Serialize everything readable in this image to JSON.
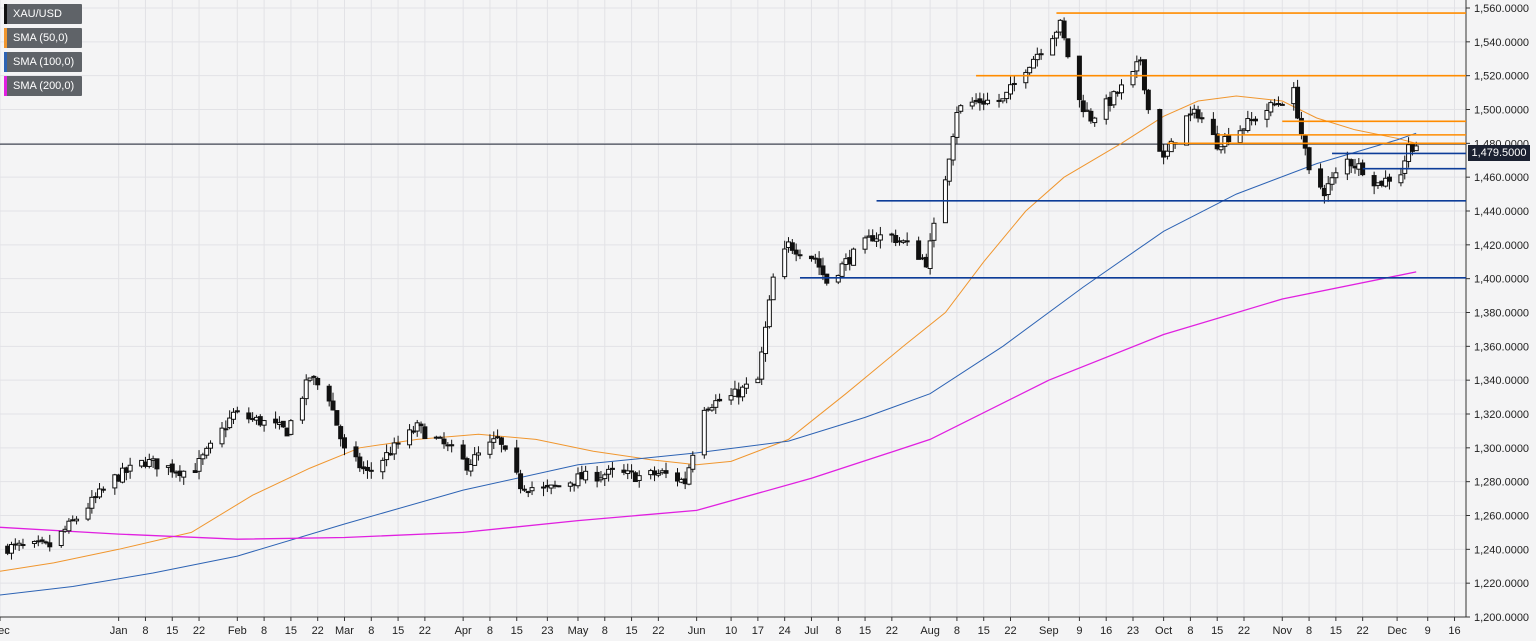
{
  "symbol": "XAU/USD",
  "legend": [
    {
      "label": "XAU/USD",
      "color": "#111111"
    },
    {
      "label": "SMA (50,0)",
      "color": "#f0962e"
    },
    {
      "label": "SMA (100,0)",
      "color": "#2d63b4"
    },
    {
      "label": "SMA (200,0)",
      "color": "#e020e0"
    }
  ],
  "colors": {
    "background": "#f4f4f5",
    "grid": "#e2e2e6",
    "bull": "#ffffff",
    "bear": "#111111",
    "sma50": "#f0962e",
    "sma100": "#2d63b4",
    "sma200": "#e020e0",
    "resistance": "#ff8c00",
    "support": "#0d3d99",
    "last_price_line": "#1b2131"
  },
  "current_price": "1,479.5000",
  "chart_data": {
    "type": "line",
    "subtype": "candlestick",
    "ylim": [
      1200,
      1560
    ],
    "y_ticks": [
      "1,200.0000",
      "1,220.0000",
      "1,240.0000",
      "1,260.0000",
      "1,280.0000",
      "1,300.0000",
      "1,320.0000",
      "1,340.0000",
      "1,360.0000",
      "1,380.0000",
      "1,400.0000",
      "1,420.0000",
      "1,440.0000",
      "1,460.0000",
      "1,480.0000",
      "1,500.0000",
      "1,520.0000",
      "1,540.0000",
      "1,560.0000"
    ],
    "x_ticks": [
      "Dec",
      "Jan",
      "8",
      "15",
      "22",
      "Feb",
      "8",
      "15",
      "22",
      "Mar",
      "8",
      "15",
      "22",
      "Apr",
      "8",
      "15",
      "23",
      "May",
      "8",
      "15",
      "22",
      "Jun",
      "10",
      "17",
      "24",
      "Jul",
      "8",
      "15",
      "22",
      "Aug",
      "8",
      "15",
      "22",
      "Sep",
      "9",
      "16",
      "23",
      "Oct",
      "8",
      "15",
      "22",
      "Nov",
      "8",
      "15",
      "22",
      "Dec",
      "9",
      "16"
    ],
    "x_range": [
      "2018-12-01",
      "2019-12-19"
    ],
    "grid": true,
    "legend_position": "top-left",
    "last_price": 1479.5,
    "series": [
      {
        "name": "XAU/USD",
        "kind": "candlestick",
        "anchors": [
          [
            "2018-12-01",
            1241
          ],
          [
            "2018-12-14",
            1242
          ],
          [
            "2018-12-31",
            1282
          ],
          [
            "2019-01-08",
            1292
          ],
          [
            "2019-01-20",
            1285
          ],
          [
            "2019-01-25",
            1300
          ],
          [
            "2019-01-31",
            1320
          ],
          [
            "2019-02-08",
            1315
          ],
          [
            "2019-02-14",
            1310
          ],
          [
            "2019-02-20",
            1342
          ],
          [
            "2019-02-25",
            1330
          ],
          [
            "2019-03-01",
            1298
          ],
          [
            "2019-03-07",
            1285
          ],
          [
            "2019-03-14",
            1300
          ],
          [
            "2019-03-20",
            1312
          ],
          [
            "2019-03-28",
            1300
          ],
          [
            "2019-04-02",
            1290
          ],
          [
            "2019-04-10",
            1305
          ],
          [
            "2019-04-16",
            1278
          ],
          [
            "2019-04-23",
            1275
          ],
          [
            "2019-05-01",
            1282
          ],
          [
            "2019-05-10",
            1285
          ],
          [
            "2019-05-17",
            1283
          ],
          [
            "2019-05-23",
            1285
          ],
          [
            "2019-05-29",
            1280
          ],
          [
            "2019-06-03",
            1325
          ],
          [
            "2019-06-10",
            1330
          ],
          [
            "2019-06-17",
            1340
          ],
          [
            "2019-06-21",
            1400
          ],
          [
            "2019-06-25",
            1420
          ],
          [
            "2019-07-02",
            1412
          ],
          [
            "2019-07-05",
            1398
          ],
          [
            "2019-07-10",
            1410
          ],
          [
            "2019-07-17",
            1425
          ],
          [
            "2019-07-22",
            1425
          ],
          [
            "2019-07-26",
            1420
          ],
          [
            "2019-07-31",
            1410
          ],
          [
            "2019-08-05",
            1460
          ],
          [
            "2019-08-08",
            1500
          ],
          [
            "2019-08-13",
            1505
          ],
          [
            "2019-08-20",
            1505
          ],
          [
            "2019-08-26",
            1525
          ],
          [
            "2019-09-04",
            1550
          ],
          [
            "2019-09-09",
            1505
          ],
          [
            "2019-09-12",
            1495
          ],
          [
            "2019-09-17",
            1505
          ],
          [
            "2019-09-23",
            1520
          ],
          [
            "2019-09-25",
            1530
          ],
          [
            "2019-09-27",
            1500
          ],
          [
            "2019-10-01",
            1470
          ],
          [
            "2019-10-07",
            1495
          ],
          [
            "2019-10-10",
            1498
          ],
          [
            "2019-10-15",
            1480
          ],
          [
            "2019-10-22",
            1490
          ],
          [
            "2019-10-28",
            1500
          ],
          [
            "2019-11-04",
            1510
          ],
          [
            "2019-11-08",
            1462
          ],
          [
            "2019-11-12",
            1452
          ],
          [
            "2019-11-18",
            1470
          ],
          [
            "2019-11-22",
            1465
          ],
          [
            "2019-11-26",
            1456
          ],
          [
            "2019-12-02",
            1463
          ],
          [
            "2019-12-04",
            1478
          ],
          [
            "2019-12-06",
            1479.5
          ]
        ]
      },
      {
        "name": "SMA (50,0)",
        "kind": "line",
        "points": [
          [
            "2018-12-01",
            1227
          ],
          [
            "2018-12-15",
            1232
          ],
          [
            "2019-01-01",
            1240
          ],
          [
            "2019-01-20",
            1250
          ],
          [
            "2019-02-05",
            1272
          ],
          [
            "2019-02-20",
            1288
          ],
          [
            "2019-03-05",
            1300
          ],
          [
            "2019-03-20",
            1305
          ],
          [
            "2019-04-05",
            1308
          ],
          [
            "2019-04-20",
            1305
          ],
          [
            "2019-05-05",
            1298
          ],
          [
            "2019-05-20",
            1293
          ],
          [
            "2019-06-01",
            1290
          ],
          [
            "2019-06-10",
            1292
          ],
          [
            "2019-06-25",
            1305
          ],
          [
            "2019-07-10",
            1332
          ],
          [
            "2019-07-25",
            1360
          ],
          [
            "2019-08-05",
            1380
          ],
          [
            "2019-08-15",
            1410
          ],
          [
            "2019-08-26",
            1440
          ],
          [
            "2019-09-05",
            1460
          ],
          [
            "2019-09-20",
            1480
          ],
          [
            "2019-10-01",
            1496
          ],
          [
            "2019-10-10",
            1505
          ],
          [
            "2019-10-20",
            1508
          ],
          [
            "2019-11-01",
            1505
          ],
          [
            "2019-11-10",
            1495
          ],
          [
            "2019-11-20",
            1488
          ],
          [
            "2019-12-01",
            1483
          ],
          [
            "2019-12-06",
            1480
          ]
        ]
      },
      {
        "name": "SMA (100,0)",
        "kind": "line",
        "points": [
          [
            "2018-12-01",
            1213
          ],
          [
            "2018-12-20",
            1218
          ],
          [
            "2019-01-10",
            1226
          ],
          [
            "2019-02-01",
            1236
          ],
          [
            "2019-03-01",
            1255
          ],
          [
            "2019-04-01",
            1275
          ],
          [
            "2019-05-01",
            1290
          ],
          [
            "2019-06-01",
            1297
          ],
          [
            "2019-06-25",
            1304
          ],
          [
            "2019-07-15",
            1318
          ],
          [
            "2019-08-01",
            1332
          ],
          [
            "2019-08-20",
            1360
          ],
          [
            "2019-09-10",
            1395
          ],
          [
            "2019-10-01",
            1428
          ],
          [
            "2019-10-20",
            1450
          ],
          [
            "2019-11-10",
            1468
          ],
          [
            "2019-12-01",
            1482
          ],
          [
            "2019-12-06",
            1486
          ]
        ]
      },
      {
        "name": "SMA (200,0)",
        "kind": "line",
        "points": [
          [
            "2018-12-01",
            1253
          ],
          [
            "2019-01-01",
            1249
          ],
          [
            "2019-02-01",
            1246
          ],
          [
            "2019-03-01",
            1247
          ],
          [
            "2019-04-01",
            1250
          ],
          [
            "2019-05-01",
            1257
          ],
          [
            "2019-06-01",
            1263
          ],
          [
            "2019-07-01",
            1282
          ],
          [
            "2019-08-01",
            1305
          ],
          [
            "2019-09-01",
            1340
          ],
          [
            "2019-10-01",
            1367
          ],
          [
            "2019-11-01",
            1388
          ],
          [
            "2019-12-06",
            1404
          ]
        ]
      }
    ],
    "levels": {
      "resistance": [
        {
          "price": 1557,
          "from": "2019-09-03"
        },
        {
          "price": 1520,
          "from": "2019-08-13"
        },
        {
          "price": 1493,
          "from": "2019-11-01"
        },
        {
          "price": 1485,
          "from": "2019-10-15"
        },
        {
          "price": 1480,
          "from": "2019-10-02"
        }
      ],
      "support": [
        {
          "price": 1474,
          "from": "2019-11-14"
        },
        {
          "price": 1465,
          "from": "2019-11-22"
        },
        {
          "price": 1446,
          "from": "2019-07-18"
        },
        {
          "price": 1400.5,
          "from": "2019-06-28"
        }
      ]
    }
  }
}
